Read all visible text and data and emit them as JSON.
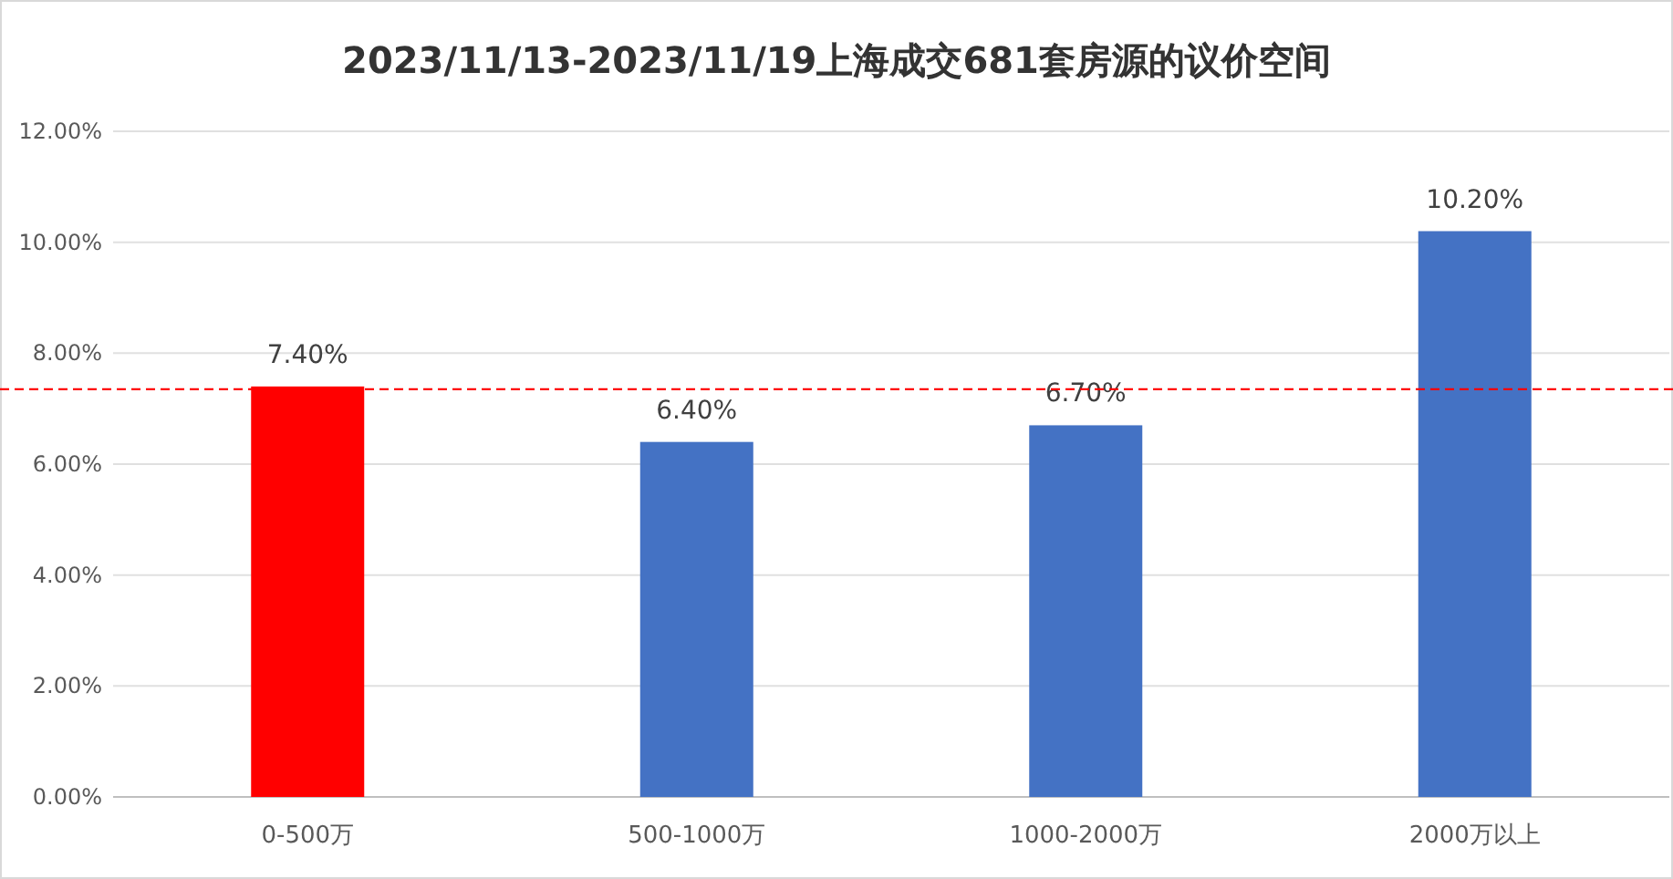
{
  "chart_data": {
    "type": "bar",
    "title": "2023/11/13-2023/11/19上海成交681套房源的议价空间",
    "categories": [
      "0-500万",
      "500-1000万",
      "1000-2000万",
      "2000万以上"
    ],
    "values": [
      7.4,
      6.4,
      6.7,
      10.2
    ],
    "colors": [
      "#ff0000",
      "#4472c4",
      "#4472c4",
      "#4472c4"
    ],
    "value_labels": [
      "7.40%",
      "6.40%",
      "6.70%",
      "10.20%"
    ],
    "ylim": [
      0,
      12
    ],
    "yticks": [
      {
        "value": 0,
        "label": "0.00%"
      },
      {
        "value": 2,
        "label": "2.00%"
      },
      {
        "value": 4,
        "label": "4.00%"
      },
      {
        "value": 6,
        "label": "6.00%"
      },
      {
        "value": 8,
        "label": "8.00%"
      },
      {
        "value": 10,
        "label": "10.00%"
      },
      {
        "value": 12,
        "label": "12.00%"
      }
    ],
    "grid": "y",
    "ref_lines": [
      {
        "axis": "y",
        "value": 7.35,
        "color": "#ff0000",
        "line_style": "dashed"
      }
    ]
  }
}
